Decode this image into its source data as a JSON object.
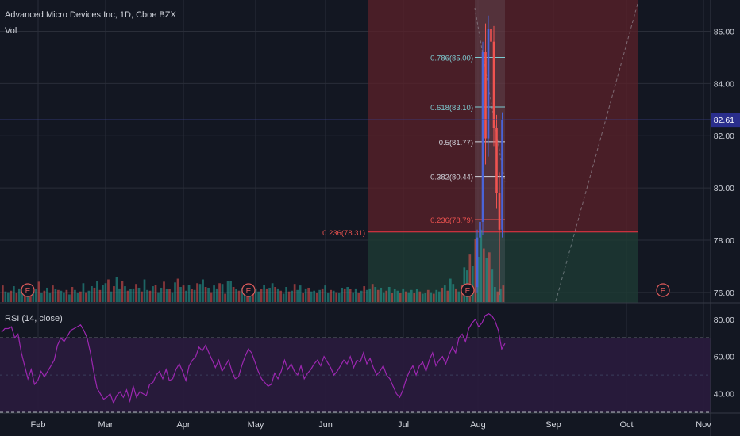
{
  "header": {
    "title": "Advanced Micro Devices Inc, 1D, Cboe BZX",
    "vol_label": "Vol"
  },
  "rsi_label": "RSI (14, close)",
  "colors": {
    "background": "#131722",
    "grid": "#2a2e39",
    "up": "#26a69a",
    "down": "#ef5350",
    "rsi_line": "#9c27b0",
    "rsi_band": "#2a1b3d",
    "price_line": "#3a3f8a",
    "price_badge": "#2a2e8c",
    "fib_red_zone": "#5c2129",
    "fib_green_zone": "#1e3b34",
    "event": "#e05b5b"
  },
  "chart_data": [
    {
      "type": "candlestick",
      "title": "Advanced Micro Devices Inc, 1D, Cboe BZX",
      "ylim": [
        75.6,
        87.2
      ],
      "y_ticks": [
        76.0,
        78.0,
        80.0,
        82.0,
        84.0,
        86.0
      ],
      "x_ticks": [
        "Feb",
        "Mar",
        "Apr",
        "May",
        "Jun",
        "Jul",
        "Aug",
        "Sep",
        "Oct",
        "Nov"
      ],
      "current_price": 82.61,
      "fib_levels": [
        {
          "label": "0.786(85.00)",
          "value": 85.0
        },
        {
          "label": "0.618(83.10)",
          "value": 83.1
        },
        {
          "label": "0.5(81.77)",
          "value": 81.77
        },
        {
          "label": "0.382(80.44)",
          "value": 80.44
        },
        {
          "label": "0.236(78.79)",
          "value": 78.79
        },
        {
          "label": "0.236(78.31)",
          "value": 78.31
        }
      ],
      "candles": [
        {
          "o": 76.2,
          "h": 78.4,
          "l": 76.0,
          "c": 78.1
        },
        {
          "o": 78.1,
          "h": 79.6,
          "l": 77.6,
          "c": 78.7
        },
        {
          "o": 78.7,
          "h": 85.6,
          "l": 78.2,
          "c": 85.2
        },
        {
          "o": 85.2,
          "h": 86.3,
          "l": 80.9,
          "c": 81.9
        },
        {
          "o": 81.9,
          "h": 86.6,
          "l": 81.2,
          "c": 86.1
        },
        {
          "o": 86.1,
          "h": 87.0,
          "l": 84.6,
          "c": 85.6
        },
        {
          "o": 85.6,
          "h": 86.2,
          "l": 81.6,
          "c": 82.3
        },
        {
          "o": 82.3,
          "h": 82.8,
          "l": 79.2,
          "c": 79.8
        },
        {
          "o": 79.8,
          "h": 80.6,
          "l": 75.9,
          "c": 78.4
        },
        {
          "o": 78.4,
          "h": 82.9,
          "l": 78.1,
          "c": 82.61
        }
      ],
      "volume": [
        22,
        14,
        13,
        15,
        21,
        12,
        18,
        17,
        14,
        24,
        19,
        16,
        17,
        27,
        12,
        15,
        19,
        12,
        22,
        17,
        16,
        15,
        13,
        16,
        10,
        20,
        16,
        12,
        14,
        25,
        13,
        15,
        21,
        19,
        28,
        16,
        23,
        25,
        30,
        14,
        21,
        33,
        18,
        28,
        21,
        15,
        17,
        18,
        24,
        19,
        14,
        30,
        16,
        15,
        21,
        23,
        13,
        19,
        27,
        17,
        17,
        13,
        26,
        31,
        20,
        22,
        15,
        23,
        17,
        16,
        25,
        24,
        30,
        20,
        19,
        13,
        22,
        18,
        25,
        24,
        11,
        28,
        28,
        20,
        17,
        15,
        19,
        17,
        13,
        24,
        20,
        18,
        14,
        17,
        23,
        18,
        19,
        25,
        20,
        18,
        15,
        11,
        20,
        14,
        15,
        24,
        16,
        22,
        12,
        18,
        19,
        14,
        15,
        12,
        16,
        18,
        22,
        12,
        16,
        15,
        13,
        12,
        19,
        18,
        20,
        17,
        13,
        18,
        12,
        15,
        21,
        16,
        18,
        24,
        20,
        16,
        19,
        13,
        15,
        20,
        12,
        17,
        15,
        12,
        18,
        14,
        13,
        16,
        12,
        17,
        14,
        11,
        12,
        16,
        13,
        11,
        16,
        14,
        19,
        22,
        15,
        31,
        24,
        18,
        14,
        23,
        46,
        42,
        63,
        48,
        84,
        60,
        96,
        71,
        58,
        66,
        44,
        20,
        14,
        18,
        22
      ],
      "events": [
        {
          "label": "E"
        },
        {
          "label": "E"
        },
        {
          "label": "E"
        },
        {
          "label": "E"
        }
      ]
    },
    {
      "type": "line",
      "title": "RSI (14, close)",
      "ylim": [
        30,
        88
      ],
      "y_ticks": [
        40.0,
        60.0,
        80.0
      ],
      "bands": [
        30,
        70
      ],
      "values": [
        73,
        75,
        75,
        76,
        70,
        72,
        62,
        55,
        48,
        53,
        45,
        47,
        52,
        49,
        52,
        55,
        58,
        66,
        70,
        68,
        71,
        74,
        75,
        76,
        77,
        74,
        70,
        62,
        52,
        43,
        40,
        37,
        38,
        40,
        35,
        39,
        41,
        38,
        42,
        36,
        44,
        38,
        41,
        40,
        39,
        45,
        46,
        50,
        52,
        48,
        53,
        47,
        48,
        53,
        56,
        52,
        47,
        55,
        58,
        60,
        65,
        63,
        66,
        62,
        58,
        54,
        58,
        52,
        55,
        58,
        52,
        48,
        49,
        55,
        60,
        64,
        62,
        57,
        52,
        48,
        46,
        44,
        45,
        51,
        48,
        52,
        58,
        53,
        56,
        52,
        50,
        55,
        48,
        51,
        53,
        56,
        58,
        55,
        60,
        57,
        54,
        50,
        52,
        55,
        58,
        56,
        60,
        54,
        58,
        57,
        62,
        56,
        59,
        54,
        50,
        52,
        55,
        50,
        48,
        44,
        40,
        38,
        42,
        48,
        52,
        55,
        50,
        55,
        57,
        52,
        58,
        62,
        55,
        58,
        60,
        56,
        61,
        65,
        62,
        70,
        72,
        68,
        75,
        78,
        80,
        76,
        78,
        82,
        83,
        82,
        79,
        74,
        64,
        67
      ]
    }
  ]
}
